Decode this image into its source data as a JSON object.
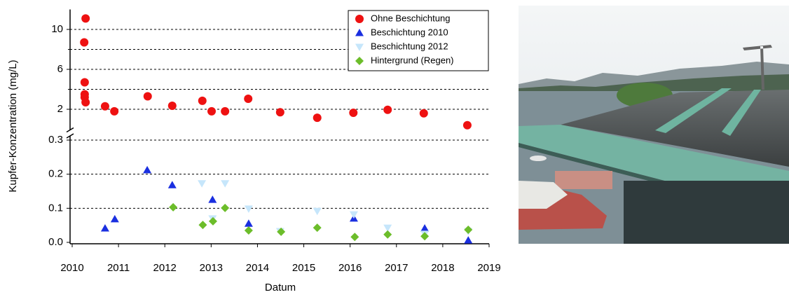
{
  "chart_data": {
    "type": "scatter",
    "x_label": "Datum",
    "y_label": "Kupfer-Konzentration (mg/L)",
    "xlim": [
      2010,
      2019
    ],
    "xticks": [
      2010,
      2011,
      2012,
      2013,
      2014,
      2015,
      2016,
      2017,
      2018,
      2019
    ],
    "ylim": [
      0,
      0.3
    ],
    "yticks": [
      {
        "value": 0,
        "label": "0.0"
      },
      0.1,
      0.2,
      0.3
    ],
    "y2lim": [
      0,
      12
    ],
    "y2ticks": [
      2,
      6,
      10
    ],
    "y2minor_ticks": [
      4,
      8
    ],
    "broken_axis": true,
    "grid": true,
    "legend": "upper right",
    "series": [
      {
        "name": "Ohne Beschichtung",
        "color": "#ee1111",
        "marker": "circle",
        "axis": "y2",
        "x": [
          2010.29,
          2010.26,
          2010.27,
          2010.27,
          2010.27,
          2010.29,
          2010.71,
          2010.91,
          2011.63,
          2012.16,
          2012.81,
          2013.01,
          2013.3,
          2013.8,
          2014.49,
          2015.29,
          2016.07,
          2016.81,
          2017.59,
          2018.53
        ],
        "values": [
          11.1,
          8.7,
          4.7,
          3.5,
          3.2,
          2.7,
          2.3,
          1.8,
          3.3,
          2.35,
          2.85,
          1.8,
          1.8,
          3.05,
          1.7,
          1.15,
          1.65,
          1.95,
          1.6,
          0.4
        ]
      },
      {
        "name": "Beschichtung 2010",
        "color": "#1a2fe0",
        "marker": "triangle-up",
        "x": [
          2010.71,
          2010.92,
          2011.62,
          2012.16,
          2013.03,
          2013.81,
          2016.08,
          2017.61,
          2018.55
        ],
        "values": [
          0.041,
          0.068,
          0.212,
          0.168,
          0.125,
          0.055,
          0.07,
          0.041,
          0.006
        ]
      },
      {
        "name": "Beschichtung 2012",
        "color": "#c6e6fb",
        "marker": "triangle-down",
        "x": [
          2012.8,
          2013.03,
          2013.3,
          2013.81,
          2014.49,
          2015.29,
          2016.08,
          2016.81,
          2017.61,
          2018.55
        ],
        "values": [
          0.173,
          0.07,
          0.173,
          0.099,
          0.033,
          0.092,
          0.082,
          0.043,
          0.025,
          0.033
        ]
      },
      {
        "name": "Hintergrund (Regen)",
        "color": "#6cbd2a",
        "marker": "diamond",
        "x": [
          2012.18,
          2012.82,
          2013.04,
          2013.3,
          2013.81,
          2014.51,
          2015.29,
          2016.1,
          2016.81,
          2017.61,
          2018.55
        ],
        "values": [
          0.103,
          0.051,
          0.062,
          0.101,
          0.035,
          0.031,
          0.043,
          0.016,
          0.023,
          0.018,
          0.037
        ]
      }
    ]
  }
}
